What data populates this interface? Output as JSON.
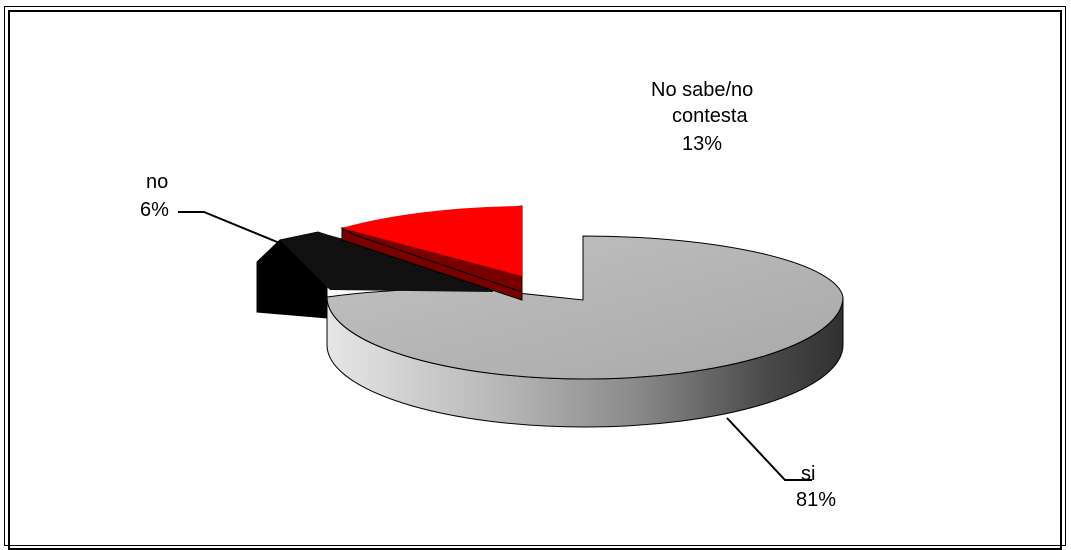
{
  "chart_data": {
    "type": "pie",
    "style": "3d-exploded",
    "title": "",
    "slices": [
      {
        "label": "si",
        "value": 81,
        "display": "81%",
        "color": "#b3b3b3"
      },
      {
        "label": "no",
        "value": 6,
        "display": "6%",
        "color": "#000000"
      },
      {
        "label": "No sabe/no contesta",
        "value": 13,
        "display": "13%",
        "color": "#ff0000"
      }
    ],
    "label_text": {
      "si": "si",
      "no": "no",
      "nsnc_line1": "No sabe/no",
      "nsnc_line2": "contesta"
    }
  }
}
